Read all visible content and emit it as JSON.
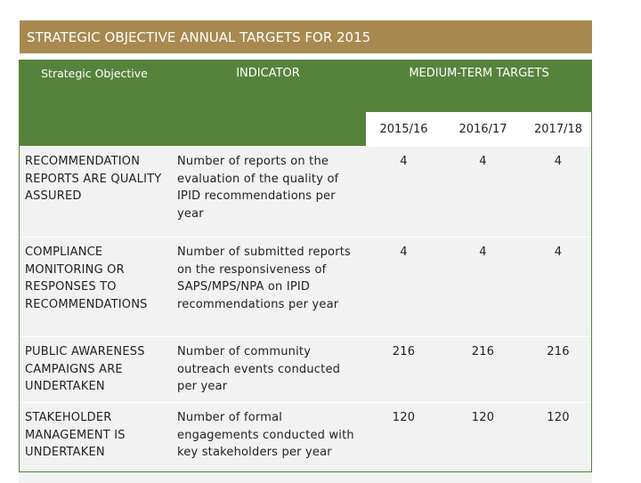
{
  "title": "STRATEGIC OBJECTIVE ANNUAL TARGETS FOR 2015",
  "headers": {
    "objective": "Strategic Objective",
    "indicator": "INDICATOR",
    "medium_term": "MEDIUM-TERM TARGETS",
    "years": [
      "2015/16",
      "2016/17",
      "2017/18"
    ]
  },
  "rows": [
    {
      "objective": "RECOMMENDATION REPORTS ARE QUALITY ASSURED",
      "indicator": "Number of reports on the evaluation of the quality of IPID recommendations per year",
      "targets": [
        "4",
        "4",
        "4"
      ]
    },
    {
      "objective": "COMPLIANCE MONITORING OR RESPONSES TO RECOMMENDATIONS",
      "indicator": "Number of submitted reports on the responsiveness of SAPS/MPS/NPA on IPID recommendations per year",
      "targets": [
        "4",
        "4",
        "4"
      ]
    },
    {
      "objective": "PUBLIC AWARENESS CAMPAIGNS ARE UNDERTAKEN",
      "indicator": "Number of community outreach events conducted per year",
      "targets": [
        "216",
        "216",
        "216"
      ]
    },
    {
      "objective": "STAKEHOLDER MANAGEMENT IS UNDERTAKEN",
      "indicator": "Number of formal engagements conducted with key stakeholders per year",
      "targets": [
        "120",
        "120",
        "120"
      ]
    }
  ],
  "colors": {
    "title_bg": "#a8894f",
    "header_bg": "#56833b",
    "cell_bg": "#f2f2f2"
  }
}
